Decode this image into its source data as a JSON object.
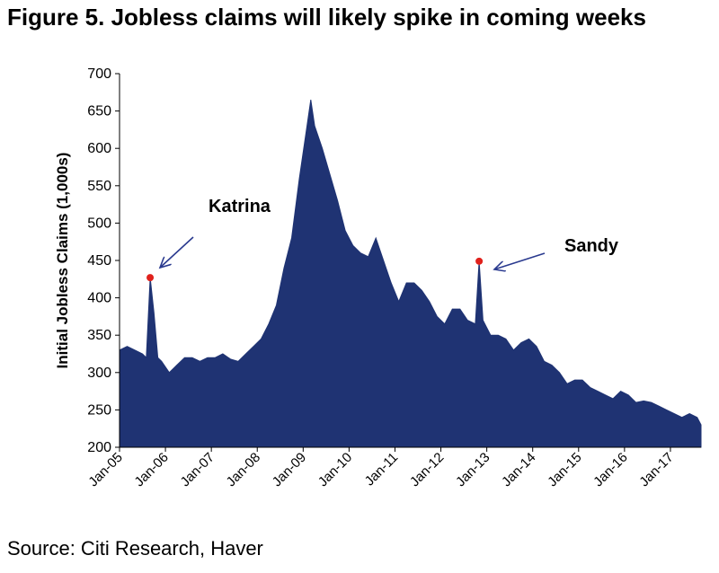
{
  "title": "Figure 5. Jobless claims will likely spike in coming weeks",
  "source": "Source: Citi Research, Haver",
  "colors": {
    "fill": "#1f3373",
    "marker": "#e0211c",
    "arrow": "#2a3a8f"
  },
  "chart_data": {
    "type": "area",
    "ylabel": "Initial Jobless Claims (1,000s)",
    "xlabel": "",
    "ylim": [
      200,
      700
    ],
    "grid": false,
    "x_ticks": [
      "Jan-05",
      "Jan-06",
      "Jan-07",
      "Jan-08",
      "Jan-09",
      "Jan-10",
      "Jan-11",
      "Jan-12",
      "Jan-13",
      "Jan-14",
      "Jan-15",
      "Jan-16",
      "Jan-17"
    ],
    "y_ticks": [
      200,
      250,
      300,
      350,
      400,
      450,
      500,
      550,
      600,
      650,
      700
    ],
    "x_range": [
      "2005-01",
      "2017-09"
    ],
    "series": [
      {
        "values": [
          [
            "2005-01",
            330
          ],
          [
            "2005-03",
            335
          ],
          [
            "2005-05",
            330
          ],
          [
            "2005-07",
            325
          ],
          [
            "2005-08",
            320
          ],
          [
            "2005-09",
            427
          ],
          [
            "2005-10",
            380
          ],
          [
            "2005-11",
            320
          ],
          [
            "2005-12",
            315
          ],
          [
            "2006-02",
            300
          ],
          [
            "2006-04",
            310
          ],
          [
            "2006-06",
            320
          ],
          [
            "2006-08",
            320
          ],
          [
            "2006-10",
            315
          ],
          [
            "2006-12",
            320
          ],
          [
            "2007-02",
            320
          ],
          [
            "2007-04",
            325
          ],
          [
            "2007-06",
            318
          ],
          [
            "2007-08",
            315
          ],
          [
            "2007-10",
            325
          ],
          [
            "2007-12",
            335
          ],
          [
            "2008-02",
            345
          ],
          [
            "2008-04",
            365
          ],
          [
            "2008-06",
            390
          ],
          [
            "2008-08",
            440
          ],
          [
            "2008-10",
            480
          ],
          [
            "2008-12",
            560
          ],
          [
            "2009-02",
            630
          ],
          [
            "2009-03",
            665
          ],
          [
            "2009-04",
            630
          ],
          [
            "2009-06",
            600
          ],
          [
            "2009-08",
            565
          ],
          [
            "2009-10",
            530
          ],
          [
            "2009-12",
            490
          ],
          [
            "2010-02",
            470
          ],
          [
            "2010-04",
            460
          ],
          [
            "2010-06",
            455
          ],
          [
            "2010-08",
            480
          ],
          [
            "2010-10",
            450
          ],
          [
            "2010-12",
            420
          ],
          [
            "2011-02",
            395
          ],
          [
            "2011-04",
            420
          ],
          [
            "2011-06",
            420
          ],
          [
            "2011-08",
            410
          ],
          [
            "2011-10",
            395
          ],
          [
            "2011-12",
            375
          ],
          [
            "2012-02",
            365
          ],
          [
            "2012-04",
            385
          ],
          [
            "2012-06",
            385
          ],
          [
            "2012-08",
            370
          ],
          [
            "2012-10",
            365
          ],
          [
            "2012-11",
            449
          ],
          [
            "2012-12",
            370
          ],
          [
            "2013-02",
            350
          ],
          [
            "2013-04",
            350
          ],
          [
            "2013-06",
            345
          ],
          [
            "2013-08",
            330
          ],
          [
            "2013-10",
            340
          ],
          [
            "2013-12",
            345
          ],
          [
            "2014-02",
            335
          ],
          [
            "2014-04",
            315
          ],
          [
            "2014-06",
            310
          ],
          [
            "2014-08",
            300
          ],
          [
            "2014-10",
            285
          ],
          [
            "2014-12",
            290
          ],
          [
            "2015-02",
            290
          ],
          [
            "2015-04",
            280
          ],
          [
            "2015-06",
            275
          ],
          [
            "2015-08",
            270
          ],
          [
            "2015-10",
            265
          ],
          [
            "2015-12",
            275
          ],
          [
            "2016-02",
            270
          ],
          [
            "2016-04",
            260
          ],
          [
            "2016-06",
            262
          ],
          [
            "2016-08",
            260
          ],
          [
            "2016-10",
            255
          ],
          [
            "2016-12",
            250
          ],
          [
            "2017-02",
            245
          ],
          [
            "2017-04",
            240
          ],
          [
            "2017-06",
            245
          ],
          [
            "2017-08",
            240
          ],
          [
            "2017-09",
            230
          ]
        ]
      }
    ],
    "highlights": [
      {
        "label": "Katrina",
        "x": "2005-09",
        "y": 427
      },
      {
        "label": "Sandy",
        "x": "2012-11",
        "y": 449
      }
    ]
  }
}
